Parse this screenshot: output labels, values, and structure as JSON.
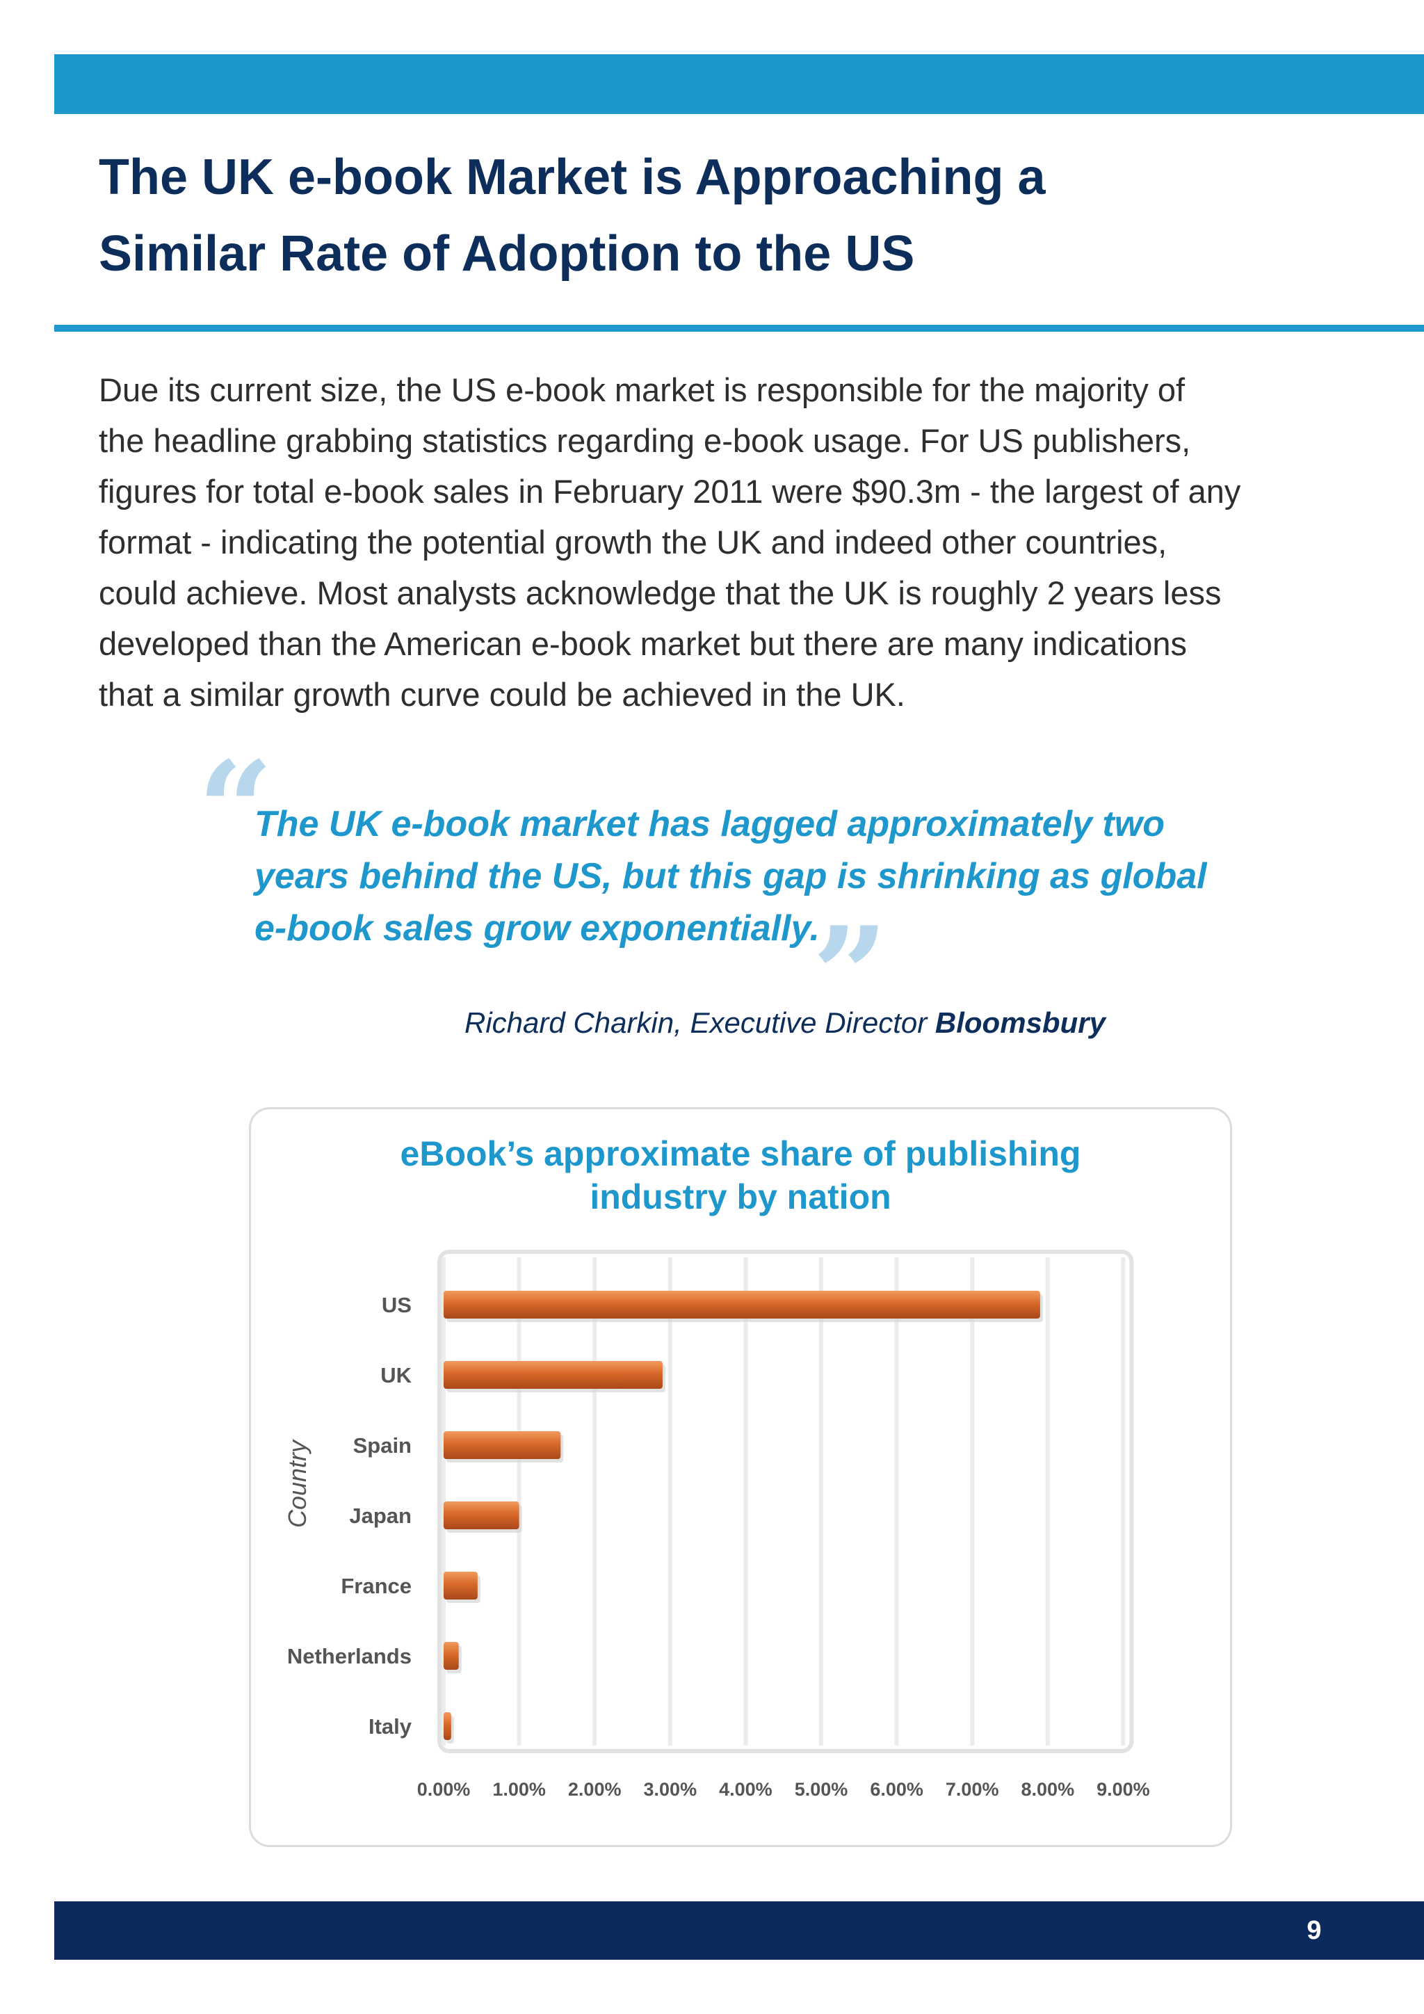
{
  "page": {
    "heading_line1": "The UK e-book Market is Approaching a",
    "heading_line2": "Similar Rate of Adoption to the US",
    "body_lines": [
      "Due its current size, the US e-book market is responsible for the majority of",
      "the headline grabbing statistics regarding e-book usage. For US publishers,",
      "figures for total e-book sales in February 2011 were $90.3m - the largest of any",
      "format - indicating the potential growth the UK and indeed other countries,",
      "could achieve. Most analysts acknowledge that the UK is roughly 2 years less",
      "developed than the American e-book market but there are many indications",
      "that a similar growth curve could be achieved in the UK."
    ],
    "quote_lines": [
      "The UK e-book market has lagged approximately two",
      "years behind the US, but this gap is shrinking as global",
      "e-book sales grow exponentially."
    ],
    "quote_open_mark": "“",
    "quote_close_mark": "”",
    "attribution_name": "Richard Charkin, Executive Director",
    "attribution_org": "Bloomsbury",
    "page_number": "9",
    "colors": {
      "accent_blue": "#1e97cd",
      "navy": "#0d2e5a",
      "bar_orange": "#d8692a"
    }
  },
  "chart_data": {
    "type": "bar",
    "orientation": "horizontal",
    "title_line1": "eBook’s approximate share of publishing",
    "title_line2": "industry by nation",
    "xlabel": "",
    "ylabel": "Country",
    "categories": [
      "US",
      "UK",
      "Spain",
      "Japan",
      "France",
      "Netherlands",
      "Italy"
    ],
    "values": [
      7.9,
      2.9,
      1.55,
      1.0,
      0.45,
      0.2,
      0.1
    ],
    "xlim": [
      0,
      9
    ],
    "x_ticks": [
      "0.00%",
      "1.00%",
      "2.00%",
      "3.00%",
      "4.00%",
      "5.00%",
      "6.00%",
      "7.00%",
      "8.00%",
      "9.00%"
    ],
    "grid": "vertical",
    "legend": "none"
  }
}
